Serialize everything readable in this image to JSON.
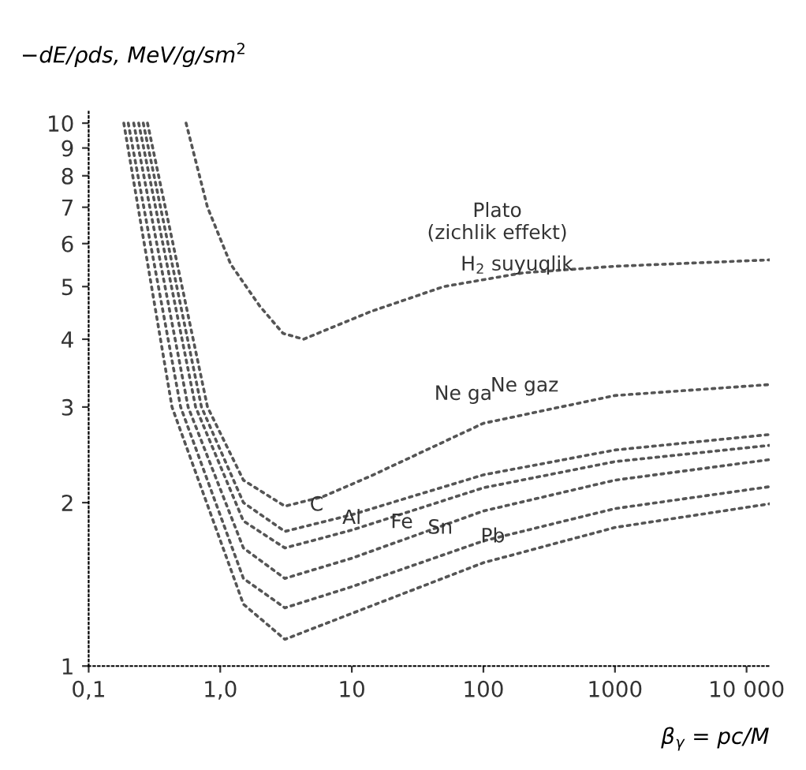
{
  "chart_data": {
    "type": "line",
    "ylabel": "−dE/ρds, MeV/g/sm$^{2}$",
    "xlabel": "β$_{γ}$ = pc/M",
    "log": "xy",
    "grid": false,
    "marker": "none",
    "line_style": "dotted",
    "xlim": [
      0.1,
      15000
    ],
    "ylim": [
      1,
      10.5
    ],
    "xticks": [
      {
        "value": 0.1,
        "label": "0,1"
      },
      {
        "value": 1,
        "label": "1,0"
      },
      10,
      100,
      1000,
      {
        "value": 10000,
        "label": "10 000"
      }
    ],
    "yticks": [
      1,
      2,
      3,
      4,
      5,
      6,
      7,
      8,
      9,
      10
    ],
    "series": [
      {
        "color": "#555555",
        "x": [
          0.55,
          0.8,
          1.2,
          2,
          3,
          4.3,
          7,
          14,
          50,
          200,
          1000,
          15000
        ],
        "values": [
          10,
          7,
          5.5,
          4.6,
          4.1,
          4.0,
          4.2,
          4.5,
          5.0,
          5.3,
          5.45,
          5.6
        ]
      },
      {
        "color": "#555555",
        "x": [
          0.28,
          0.8,
          1.5,
          3.1,
          6,
          14,
          100,
          1000,
          15000
        ],
        "values": [
          10,
          3,
          2.2,
          1.97,
          2.05,
          2.24,
          2.8,
          3.15,
          3.3
        ]
      },
      {
        "color": "#555555",
        "x": [
          0.26,
          0.72,
          1.5,
          3.1,
          10,
          100,
          1000,
          15000
        ],
        "values": [
          10,
          3,
          2.0,
          1.77,
          1.9,
          2.25,
          2.5,
          2.67
        ]
      },
      {
        "color": "#555555",
        "x": [
          0.24,
          0.65,
          1.5,
          3.1,
          10,
          100,
          1000,
          15000
        ],
        "values": [
          10,
          3,
          1.85,
          1.65,
          1.78,
          2.13,
          2.38,
          2.55
        ]
      },
      {
        "color": "#555555",
        "x": [
          0.22,
          0.57,
          1.5,
          3.1,
          10,
          100,
          1000,
          15000
        ],
        "values": [
          10,
          3,
          1.65,
          1.45,
          1.58,
          1.93,
          2.2,
          2.4
        ]
      },
      {
        "color": "#555555",
        "x": [
          0.2,
          0.5,
          1.5,
          3.1,
          10,
          100,
          1000,
          15000
        ],
        "values": [
          10,
          3,
          1.45,
          1.28,
          1.4,
          1.7,
          1.95,
          2.14
        ]
      },
      {
        "color": "#555555",
        "x": [
          0.185,
          0.43,
          1.5,
          3.1,
          10,
          100,
          1000,
          15000
        ],
        "values": [
          10,
          3,
          1.3,
          1.12,
          1.25,
          1.55,
          1.8,
          1.99
        ]
      }
    ],
    "annotations": [
      "Plato\n(zichlik effekt)",
      {
        "text": "H$_{2}$ suyuqlik",
        "x": 180,
        "y": 5.07
      },
      "Ne ga",
      "Ne gaz",
      {
        "text": "C",
        "x": 5.4,
        "y": 1.83
      },
      {
        "text": "Al",
        "x": 10,
        "y": 1.73
      },
      {
        "text": "Fe",
        "x": 24,
        "y": 1.7
      },
      {
        "text": "Sn",
        "x": 47,
        "y": 1.66
      },
      {
        "text": "Pb",
        "x": 118,
        "y": 1.6
      }
    ]
  }
}
